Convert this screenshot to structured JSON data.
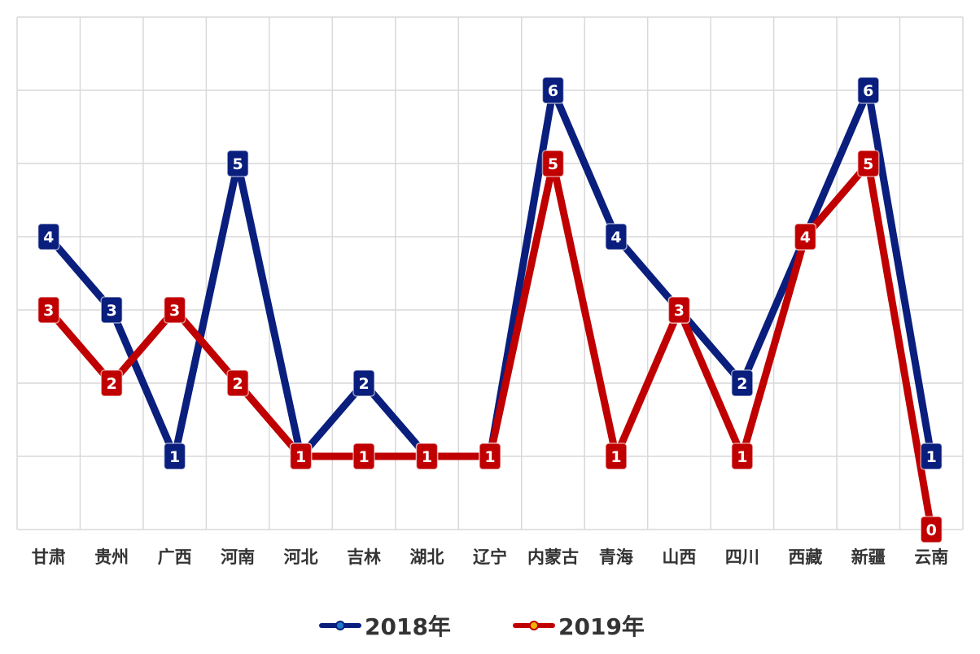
{
  "chart_data": {
    "type": "line",
    "categories": [
      "甘肃",
      "贵州",
      "广西",
      "河南",
      "河北",
      "吉林",
      "湖北",
      "辽宁",
      "内蒙古",
      "青海",
      "山西",
      "四川",
      "西藏",
      "新疆",
      "云南"
    ],
    "series": [
      {
        "name": "2018年",
        "color": "#0a1e7d",
        "marker_color": "#1f78c8",
        "values": [
          4,
          3,
          1,
          5,
          1,
          2,
          1,
          1,
          6,
          4,
          3,
          2,
          4,
          6,
          1
        ]
      },
      {
        "name": "2019年",
        "color": "#c00000",
        "marker_color": "#f0b400",
        "values": [
          3,
          2,
          3,
          2,
          1,
          1,
          1,
          1,
          5,
          1,
          3,
          1,
          4,
          5,
          0
        ]
      }
    ],
    "ylim": [
      0,
      7
    ],
    "grid": true,
    "legend_position": "bottom",
    "data_labels": true
  }
}
